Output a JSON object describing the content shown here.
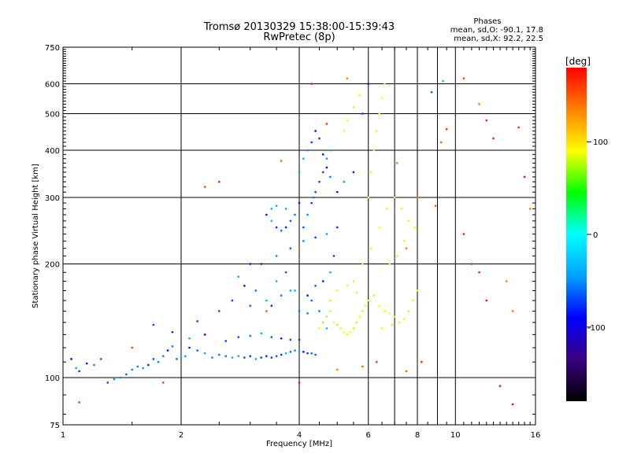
{
  "chart_data": {
    "type": "scatter",
    "title": "Tromsø 20130329 15:38:00-15:39:43",
    "subtitle": "RwPretec (8p)",
    "phase_legend": [
      "Phases",
      "mean, sd,O: -90.1, 17.8",
      "mean, sd,X:  92.2, 22.5"
    ],
    "xlabel": "Frequency [MHz]",
    "ylabel": "Stationary phase Virtual Height [km]",
    "xscale": "log",
    "yscale": "log",
    "xlim": [
      1,
      16
    ],
    "ylim": [
      75,
      750
    ],
    "x_ticks": [
      1,
      2,
      4,
      6,
      8,
      10,
      16
    ],
    "x_tick_labels": [
      "1",
      "2",
      "4",
      "6",
      "8",
      "10",
      "16"
    ],
    "y_ticks": [
      75,
      100,
      200,
      300,
      400,
      500,
      600,
      750
    ],
    "y_tick_labels": [
      "75",
      "100",
      "200",
      "300",
      "400",
      "500",
      "600",
      "750"
    ],
    "grid": true,
    "colorbar": {
      "label": "[deg]",
      "range": [
        -180,
        180
      ],
      "ticks": [
        100,
        0,
        -100
      ],
      "tick_labels": [
        "100",
        "0",
        "-100"
      ],
      "colors": [
        "#000000",
        "#3a0080",
        "#0000ff",
        "#00a0ff",
        "#00ffff",
        "#00ff00",
        "#ffff00",
        "#ff8000",
        "#ff0000"
      ]
    },
    "series": [
      {
        "role": "O-mode traces",
        "color_range": [
          "#0000ff",
          "#00c0ff"
        ],
        "points": [
          [
            1.05,
            112
          ],
          [
            1.08,
            106
          ],
          [
            1.1,
            104
          ],
          [
            1.15,
            109
          ],
          [
            1.2,
            108
          ],
          [
            1.25,
            112
          ],
          [
            1.3,
            97
          ],
          [
            1.35,
            99
          ],
          [
            1.4,
            100
          ],
          [
            1.45,
            102
          ],
          [
            1.5,
            105
          ],
          [
            1.55,
            107
          ],
          [
            1.6,
            106
          ],
          [
            1.65,
            108
          ],
          [
            1.7,
            112
          ],
          [
            1.75,
            110
          ],
          [
            1.8,
            114
          ],
          [
            1.85,
            118
          ],
          [
            1.9,
            121
          ],
          [
            1.95,
            112
          ],
          [
            2.0,
            113
          ],
          [
            2.05,
            114
          ],
          [
            2.1,
            120
          ],
          [
            2.2,
            118
          ],
          [
            2.3,
            116
          ],
          [
            2.4,
            113
          ],
          [
            2.5,
            115
          ],
          [
            2.6,
            114
          ],
          [
            2.7,
            113
          ],
          [
            2.8,
            114
          ],
          [
            2.9,
            113
          ],
          [
            3.0,
            114
          ],
          [
            3.1,
            112
          ],
          [
            3.2,
            113
          ],
          [
            3.3,
            114
          ],
          [
            3.4,
            113
          ],
          [
            3.5,
            114
          ],
          [
            3.6,
            115
          ],
          [
            3.7,
            116
          ],
          [
            3.8,
            117
          ],
          [
            3.9,
            118
          ],
          [
            4.0,
            117
          ],
          [
            4.1,
            117
          ],
          [
            4.2,
            116
          ],
          [
            4.3,
            116
          ],
          [
            4.4,
            115
          ],
          [
            1.7,
            138
          ],
          [
            1.9,
            132
          ],
          [
            2.1,
            127
          ],
          [
            2.3,
            130
          ],
          [
            2.6,
            125
          ],
          [
            2.8,
            128
          ],
          [
            3.0,
            129
          ],
          [
            3.2,
            131
          ],
          [
            3.4,
            128
          ],
          [
            3.6,
            127
          ],
          [
            3.8,
            126
          ],
          [
            4.0,
            126
          ],
          [
            2.2,
            141
          ],
          [
            2.5,
            150
          ],
          [
            2.7,
            160
          ],
          [
            3.0,
            155
          ],
          [
            3.1,
            170
          ],
          [
            3.4,
            155
          ],
          [
            3.5,
            180
          ],
          [
            3.7,
            190
          ],
          [
            3.8,
            170
          ],
          [
            4.0,
            150
          ],
          [
            4.2,
            148
          ],
          [
            4.3,
            160
          ],
          [
            4.5,
            150
          ],
          [
            4.6,
            140
          ],
          [
            4.7,
            135
          ],
          [
            4.1,
            250
          ],
          [
            4.2,
            270
          ],
          [
            4.3,
            290
          ],
          [
            4.35,
            300
          ],
          [
            4.4,
            310
          ],
          [
            4.5,
            330
          ],
          [
            4.6,
            350
          ],
          [
            4.7,
            380
          ],
          [
            4.8,
            400
          ],
          [
            5.0,
            310
          ],
          [
            5.2,
            330
          ],
          [
            5.5,
            350
          ],
          [
            5.8,
            500
          ],
          [
            6.0,
            600
          ],
          [
            3.3,
            270
          ],
          [
            3.4,
            260
          ],
          [
            3.5,
            250
          ],
          [
            3.6,
            245
          ],
          [
            3.7,
            250
          ],
          [
            3.8,
            260
          ],
          [
            3.9,
            270
          ],
          [
            4.0,
            290
          ],
          [
            3.4,
            280
          ],
          [
            3.5,
            285
          ],
          [
            3.7,
            280
          ],
          [
            4.0,
            350
          ],
          [
            4.1,
            380
          ],
          [
            4.2,
            400
          ],
          [
            4.3,
            420
          ],
          [
            4.4,
            450
          ],
          [
            4.5,
            430
          ],
          [
            4.6,
            390
          ],
          [
            4.7,
            360
          ],
          [
            4.8,
            340
          ],
          [
            3.2,
            200
          ],
          [
            3.5,
            210
          ],
          [
            3.8,
            220
          ],
          [
            4.1,
            230
          ],
          [
            4.4,
            235
          ],
          [
            4.7,
            240
          ],
          [
            5.0,
            250
          ],
          [
            4.9,
            210
          ],
          [
            4.8,
            190
          ],
          [
            4.6,
            180
          ],
          [
            4.4,
            175
          ],
          [
            4.2,
            165
          ],
          [
            3.3,
            160
          ],
          [
            3.6,
            165
          ],
          [
            3.9,
            170
          ],
          [
            2.9,
            175
          ],
          [
            2.8,
            185
          ],
          [
            3.0,
            200
          ],
          [
            9.3,
            610
          ],
          [
            8.7,
            570
          ]
        ]
      },
      {
        "role": "X-mode traces",
        "color_range": [
          "#c0ff00",
          "#ffff00"
        ],
        "points": [
          [
            4.5,
            135
          ],
          [
            4.6,
            140
          ],
          [
            4.7,
            145
          ],
          [
            4.8,
            150
          ],
          [
            4.9,
            140
          ],
          [
            5.0,
            138
          ],
          [
            5.1,
            135
          ],
          [
            5.2,
            132
          ],
          [
            5.3,
            130
          ],
          [
            5.4,
            132
          ],
          [
            5.5,
            135
          ],
          [
            5.6,
            140
          ],
          [
            5.7,
            145
          ],
          [
            5.8,
            150
          ],
          [
            5.9,
            155
          ],
          [
            6.0,
            160
          ],
          [
            6.2,
            165
          ],
          [
            6.4,
            155
          ],
          [
            6.6,
            150
          ],
          [
            6.8,
            148
          ],
          [
            7.0,
            145
          ],
          [
            7.2,
            140
          ],
          [
            7.4,
            143
          ],
          [
            7.6,
            150
          ],
          [
            7.8,
            160
          ],
          [
            8.0,
            170
          ],
          [
            5.5,
            180
          ],
          [
            5.8,
            200
          ],
          [
            6.1,
            220
          ],
          [
            6.4,
            250
          ],
          [
            6.7,
            280
          ],
          [
            7.0,
            300
          ],
          [
            7.3,
            280
          ],
          [
            7.6,
            260
          ],
          [
            7.9,
            250
          ],
          [
            6.0,
            300
          ],
          [
            6.1,
            350
          ],
          [
            6.2,
            400
          ],
          [
            6.3,
            450
          ],
          [
            6.4,
            500
          ],
          [
            6.5,
            550
          ],
          [
            6.6,
            600
          ],
          [
            5.2,
            450
          ],
          [
            5.3,
            480
          ],
          [
            5.5,
            520
          ],
          [
            5.7,
            560
          ],
          [
            6.8,
            200
          ],
          [
            7.1,
            210
          ],
          [
            7.4,
            230
          ],
          [
            5.0,
            170
          ],
          [
            5.3,
            175
          ],
          [
            5.6,
            168
          ],
          [
            4.8,
            160
          ],
          [
            6.5,
            135
          ],
          [
            6.9,
            138
          ]
        ]
      },
      {
        "role": "scattered returns",
        "color_range": [
          "#ff8000",
          "#ff0000"
        ],
        "points": [
          [
            1.1,
            86
          ],
          [
            1.5,
            120
          ],
          [
            1.8,
            97
          ],
          [
            2.3,
            320
          ],
          [
            2.5,
            330
          ],
          [
            3.3,
            150
          ],
          [
            4.0,
            97
          ],
          [
            5.0,
            105
          ],
          [
            5.8,
            107
          ],
          [
            6.3,
            110
          ],
          [
            7.5,
            104
          ],
          [
            8.2,
            110
          ],
          [
            8.9,
            285
          ],
          [
            9.2,
            420
          ],
          [
            9.5,
            455
          ],
          [
            10.5,
            620
          ],
          [
            11.5,
            530
          ],
          [
            12.0,
            480
          ],
          [
            12.5,
            430
          ],
          [
            13.0,
            95
          ],
          [
            14.0,
            85
          ],
          [
            14.5,
            460
          ],
          [
            15.0,
            340
          ],
          [
            15.5,
            280
          ],
          [
            10.5,
            240
          ],
          [
            11.0,
            200
          ],
          [
            11.5,
            190
          ],
          [
            12.0,
            160
          ],
          [
            13.5,
            180
          ],
          [
            14.0,
            150
          ],
          [
            7.5,
            220
          ],
          [
            8.0,
            300
          ],
          [
            7.1,
            370
          ],
          [
            5.3,
            620
          ],
          [
            4.7,
            470
          ],
          [
            4.3,
            600
          ],
          [
            3.6,
            375
          ]
        ]
      }
    ]
  }
}
